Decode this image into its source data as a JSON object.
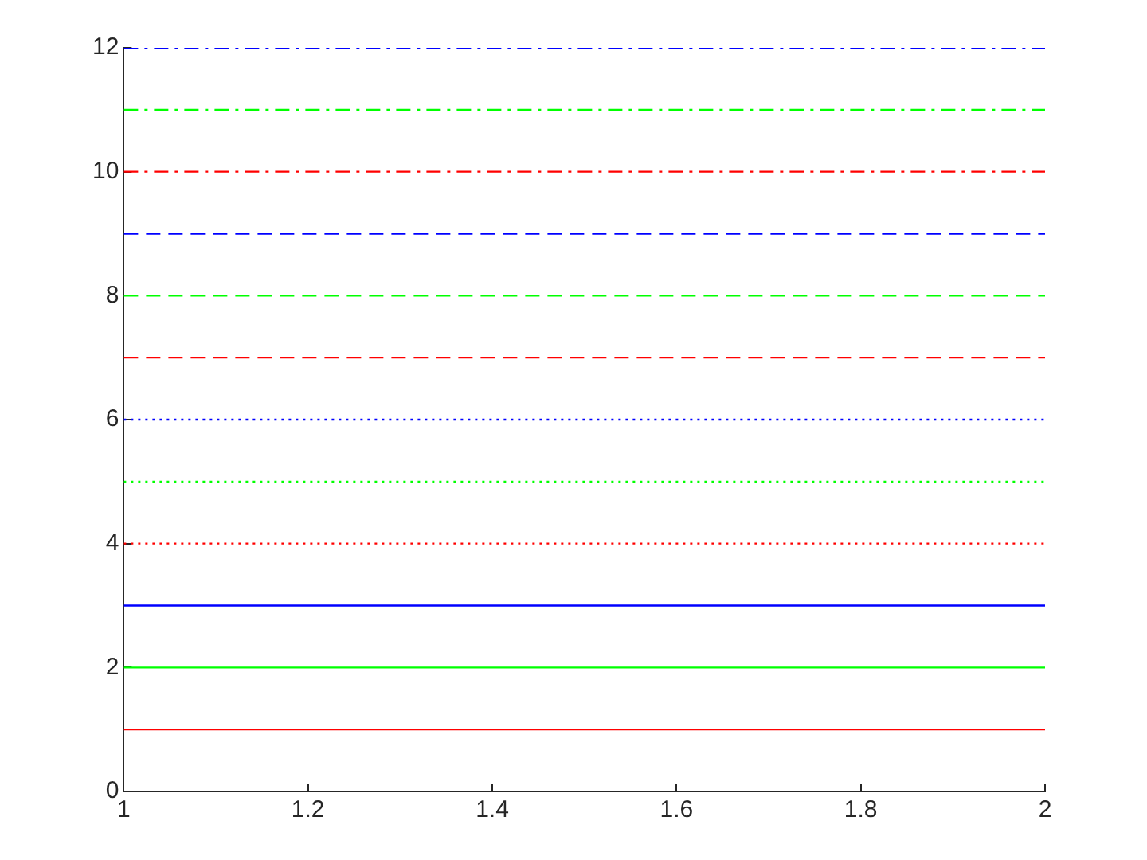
{
  "chart_data": {
    "type": "line",
    "x": [
      1,
      2
    ],
    "xlim": [
      1,
      2
    ],
    "xticks": [
      1,
      1.2,
      1.4,
      1.6,
      1.8,
      2
    ],
    "ylim": [
      0,
      12
    ],
    "yticks": [
      0,
      2,
      4,
      6,
      8,
      10,
      12
    ],
    "grid": false,
    "legend": false,
    "marker": "none",
    "series": [
      {
        "color": "#ff0000",
        "values": [
          1,
          1
        ],
        "line_style": "solid"
      },
      {
        "color": "#00ff00",
        "values": [
          2,
          2
        ],
        "line_style": "solid"
      },
      {
        "color": "#0000ff",
        "values": [
          3,
          3
        ],
        "line_style": "solid"
      },
      {
        "color": "#ff0000",
        "values": [
          4,
          4
        ],
        "line_style": "dotted"
      },
      {
        "color": "#00ff00",
        "values": [
          5,
          5
        ],
        "line_style": "dotted"
      },
      {
        "color": "#0000ff",
        "values": [
          6,
          6
        ],
        "line_style": "dotted"
      },
      {
        "color": "#ff0000",
        "values": [
          7,
          7
        ],
        "line_style": "dashed"
      },
      {
        "color": "#00ff00",
        "values": [
          8,
          8
        ],
        "line_style": "dashed"
      },
      {
        "color": "#0000ff",
        "values": [
          9,
          9
        ],
        "line_style": "dashed"
      },
      {
        "color": "#ff0000",
        "values": [
          10,
          10
        ],
        "line_style": "dashdot"
      },
      {
        "color": "#00ff00",
        "values": [
          11,
          11
        ],
        "line_style": "dashdot"
      },
      {
        "color": "#0000ff",
        "values": [
          12,
          12
        ],
        "line_style": "dashdot"
      }
    ]
  }
}
